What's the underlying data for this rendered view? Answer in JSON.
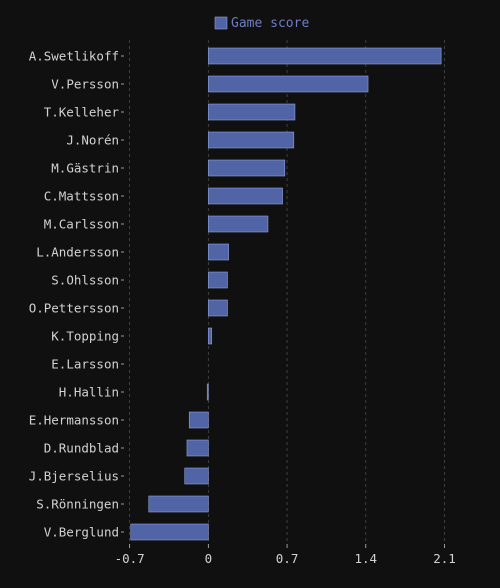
{
  "chart_data": {
    "type": "bar",
    "orientation": "horizontal",
    "categories": [
      "A.Swetlikoff",
      "V.Persson",
      "T.Kelleher",
      "J.Norén",
      "M.Gästrin",
      "C.Mattsson",
      "M.Carlsson",
      "L.Andersson",
      "S.Ohlsson",
      "O.Pettersson",
      "K.Topping",
      "E.Larsson",
      "H.Hallin",
      "E.Hermansson",
      "D.Rundblad",
      "J.Bjerselius",
      "S.Rönningen",
      "V.Berglund"
    ],
    "series": [
      {
        "name": "Game score",
        "values": [
          2.07,
          1.42,
          0.77,
          0.76,
          0.68,
          0.66,
          0.53,
          0.18,
          0.17,
          0.17,
          0.03,
          0.0,
          -0.01,
          -0.17,
          -0.19,
          -0.21,
          -0.53,
          -0.69
        ]
      }
    ],
    "xticks": [
      "-0.7",
      "0",
      "0.7",
      "1.4",
      "2.1"
    ],
    "xtick_values": [
      -0.7,
      0,
      0.7,
      1.4,
      2.1
    ],
    "xlim": [
      -0.75,
      2.22
    ],
    "title": "",
    "xlabel": "",
    "ylabel": "",
    "grid": "vertical dashed",
    "legend_position": "top-center",
    "colors": {
      "bar": "#5064a6",
      "bar_edge": "#8fa0dc",
      "background": "#101010",
      "text": "#d2d2d2",
      "grid": "#4a4a4a",
      "legend_text": "#6d7fc4"
    }
  }
}
